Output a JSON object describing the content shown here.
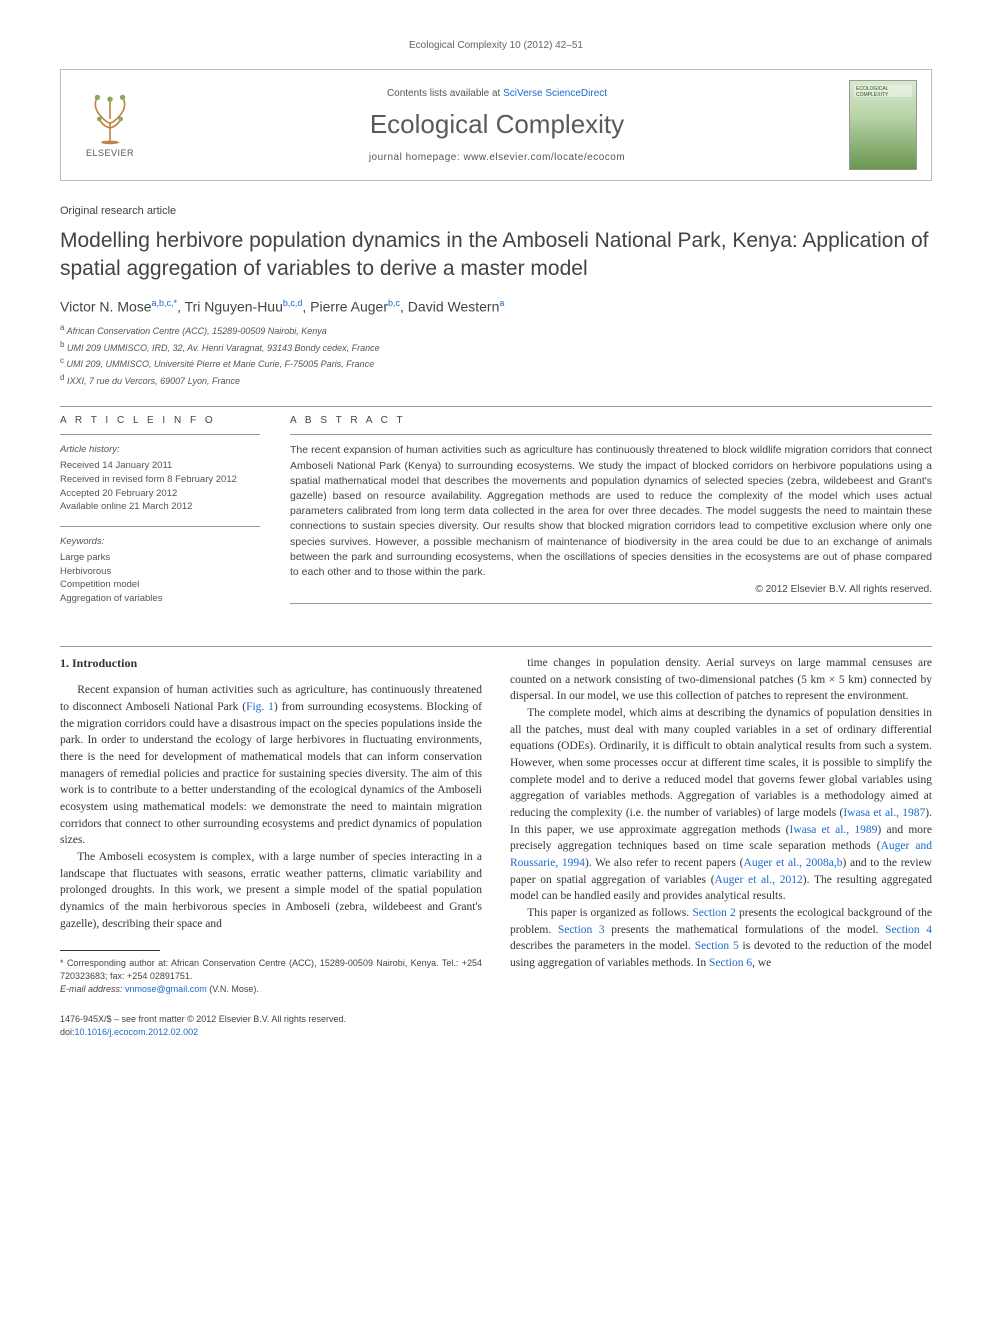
{
  "header": {
    "running": "Ecological Complexity 10 (2012) 42–51",
    "contents_prefix": "Contents lists available at ",
    "contents_link": "SciVerse ScienceDirect",
    "journal": "Ecological Complexity",
    "homepage_prefix": "journal homepage: ",
    "homepage": "www.elsevier.com/locate/ecocom",
    "publisher": "ELSEVIER",
    "cover_label": "ECOLOGICAL COMPLEXITY"
  },
  "article": {
    "type": "Original research article",
    "title": "Modelling herbivore population dynamics in the Amboseli National Park, Kenya: Application of spatial aggregation of variables to derive a master model",
    "authors_html": "Victor N. Mose<sup>a,b,c,*</sup>, Tri Nguyen-Huu<sup>b,c,d</sup>, Pierre Auger<sup>b,c</sup>, David Western<sup>a</sup>",
    "affiliations": [
      "a African Conservation Centre (ACC), 15289-00509 Nairobi, Kenya",
      "b UMI 209 UMMISCO, IRD, 32, Av. Henri Varagnat, 93143 Bondy cedex, France",
      "c UMI 209, UMMISCO, Université Pierre et Marie Curie, F-75005 Paris, France",
      "d IXXI, 7 rue du Vercors, 69007 Lyon, France"
    ]
  },
  "info": {
    "label": "A R T I C L E   I N F O",
    "history_label": "Article history:",
    "history": [
      "Received 14 January 2011",
      "Received in revised form 8 February 2012",
      "Accepted 20 February 2012",
      "Available online 21 March 2012"
    ],
    "keywords_label": "Keywords:",
    "keywords": [
      "Large parks",
      "Herbivorous",
      "Competition model",
      "Aggregation of variables"
    ]
  },
  "abstract": {
    "label": "A B S T R A C T",
    "text": "The recent expansion of human activities such as agriculture has continuously threatened to block wildlife migration corridors that connect Amboseli National Park (Kenya) to surrounding ecosystems. We study the impact of blocked corridors on herbivore populations using a spatial mathematical model that describes the movements and population dynamics of selected species (zebra, wildebeest and Grant's gazelle) based on resource availability. Aggregation methods are used to reduce the complexity of the model which uses actual parameters calibrated from long term data collected in the area for over three decades. The model suggests the need to maintain these connections to sustain species diversity. Our results show that blocked migration corridors lead to competitive exclusion where only one species survives. However, a possible mechanism of maintenance of biodiversity in the area could be due to an exchange of animals between the park and surrounding ecosystems, when the oscillations of species densities in the ecosystems are out of phase compared to each other and to those within the park.",
    "copyright": "© 2012 Elsevier B.V. All rights reserved."
  },
  "body": {
    "h1": "1. Introduction",
    "p1a": "Recent expansion of human activities such as agriculture, has continuously threatened to disconnect Amboseli National Park (",
    "p1_fig": "Fig. 1",
    "p1b": ") from surrounding ecosystems. Blocking of the migration corridors could have a disastrous impact on the species populations inside the park. In order to understand the ecology of large herbivores in fluctuating environments, there is the need for development of mathematical models that can inform conservation managers of remedial policies and practice for sustaining species diversity. The aim of this work is to contribute to a better understanding of the ecological dynamics of the Amboseli ecosystem using mathematical models: we demonstrate the need to maintain migration corridors that connect to other surrounding ecosystems and predict dynamics of population sizes.",
    "p2": "The Amboseli ecosystem is complex, with a large number of species interacting in a landscape that fluctuates with seasons, erratic weather patterns, climatic variability and prolonged droughts. In this work, we present a simple model of the spatial population dynamics of the main herbivorous species in Amboseli (zebra, wildebeest and Grant's gazelle), describing their space and",
    "p3": "time changes in population density. Aerial surveys on large mammal censuses are counted on a network consisting of two-dimensional patches (5 km × 5 km) connected by dispersal. In our model, we use this collection of patches to represent the environment.",
    "p4a": "The complete model, which aims at describing the dynamics of population densities in all the patches, must deal with many coupled variables in a set of ordinary differential equations (ODEs). Ordinarily, it is difficult to obtain analytical results from such a system. However, when some processes occur at different time scales, it is possible to simplify the complete model and to derive a reduced model that governs fewer global variables using aggregation of variables methods. Aggregation of variables is a methodology aimed at reducing the complexity (i.e. the number of variables) of large models (",
    "p4_ref1": "Iwasa et al., 1987",
    "p4b": "). In this paper, we use approximate aggregation methods (",
    "p4_ref2": "Iwasa et al., 1989",
    "p4c": ") and more precisely aggregation techniques based on time scale separation methods (",
    "p4_ref3": "Auger and Roussarie, 1994",
    "p4d": "). We also refer to recent papers (",
    "p4_ref4": "Auger et al., 2008a,b",
    "p4e": ") and to the review paper on spatial aggregation of variables (",
    "p4_ref5": "Auger et al., 2012",
    "p4f": "). The resulting aggregated model can be handled easily and provides analytical results.",
    "p5a": "This paper is organized as follows. ",
    "p5_s2": "Section 2",
    "p5b": " presents the ecological background of the problem. ",
    "p5_s3": "Section 3",
    "p5c": " presents the mathematical formulations of the model. ",
    "p5_s4": "Section 4",
    "p5d": " describes the parameters in the model. ",
    "p5_s5": "Section 5",
    "p5e": " is devoted to the reduction of the model using aggregation of variables methods. In ",
    "p5_s6": "Section 6",
    "p5f": ", we"
  },
  "footnotes": {
    "corr": "* Corresponding author at: African Conservation Centre (ACC), 15289-00509 Nairobi, Kenya. Tel.: +254 720323683; fax: +254 02891751.",
    "email_label": "E-mail address: ",
    "email": "vnmose@gmail.com",
    "email_suffix": " (V.N. Mose)."
  },
  "footer": {
    "issn": "1476-945X/$ – see front matter © 2012 Elsevier B.V. All rights reserved.",
    "doi_label": "doi:",
    "doi": "10.1016/j.ecocom.2012.02.002"
  },
  "colors": {
    "link": "#1b69d0",
    "text": "#333333",
    "muted": "#555555",
    "border": "#bbbbbb"
  }
}
